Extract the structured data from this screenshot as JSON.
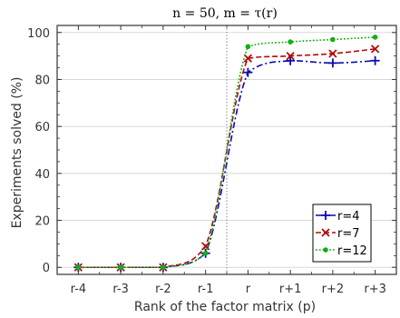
{
  "chart_data": {
    "type": "line",
    "title": "n = 50,   m = τ(r)",
    "xlabel": "Rank of the factor matrix (p)",
    "ylabel": "Experiments solved (%)",
    "categories": [
      "r-4",
      "r-3",
      "r-2",
      "r-1",
      "r",
      "r+1",
      "r+2",
      "r+3"
    ],
    "ylim": [
      -3,
      103
    ],
    "yticks": [
      0,
      20,
      40,
      60,
      80,
      100
    ],
    "grid": "horizontal",
    "legend_position": "bottom-right",
    "vline_between": [
      "r-1",
      "r"
    ],
    "series": [
      {
        "name": "r=4",
        "color": "#0a0ab4",
        "marker": "plus",
        "line": "dashdot",
        "x": [
          1,
          2,
          3,
          4,
          5,
          6,
          7,
          8
        ],
        "values": [
          0,
          0,
          0,
          6,
          83,
          88,
          87,
          88
        ]
      },
      {
        "name": "r=7",
        "color": "#b40a0a",
        "marker": "x",
        "line": "dashed",
        "x": [
          1,
          2,
          3,
          4,
          5,
          6,
          7,
          8
        ],
        "values": [
          0,
          0,
          0,
          9,
          89,
          90,
          91,
          93
        ]
      },
      {
        "name": "r=12",
        "color": "#10b010",
        "marker": "dot",
        "line": "dotted",
        "x": [
          1,
          2,
          3,
          4,
          5,
          6,
          7,
          8
        ],
        "values": [
          0,
          0,
          0,
          6,
          94,
          96,
          97,
          98
        ]
      }
    ]
  }
}
